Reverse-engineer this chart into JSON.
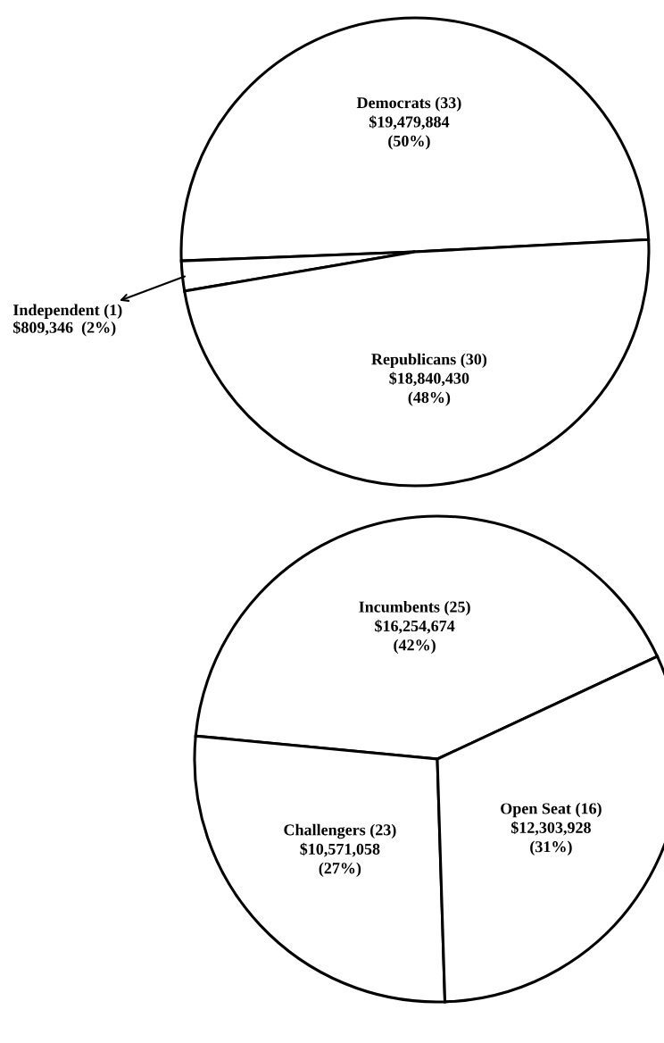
{
  "chart_data": [
    {
      "type": "pie",
      "categories": [
        "Democrats (33)",
        "Independent (1)",
        "Republicans (30)"
      ],
      "values": [
        19479884,
        809346,
        18840430
      ],
      "colors": [
        "#ffffff",
        "#ffffff",
        "#ffffff"
      ],
      "value_labels": [
        "$19,479,884\n(50%)",
        "$809,346  (2%)",
        "$18,840,430\n(48%)"
      ]
    },
    {
      "type": "pie",
      "categories": [
        "Incumbents (25)",
        "Challengers (23)",
        "Open Seat (16)"
      ],
      "values": [
        16254674,
        10571058,
        12303928
      ],
      "colors": [
        "#ffffff",
        "#ffffff",
        "#ffffff"
      ],
      "value_labels": [
        "$16,254,674\n(42%)",
        "$10,571,058\n(27%)",
        "$12,303,928\n(31%)"
      ]
    }
  ]
}
